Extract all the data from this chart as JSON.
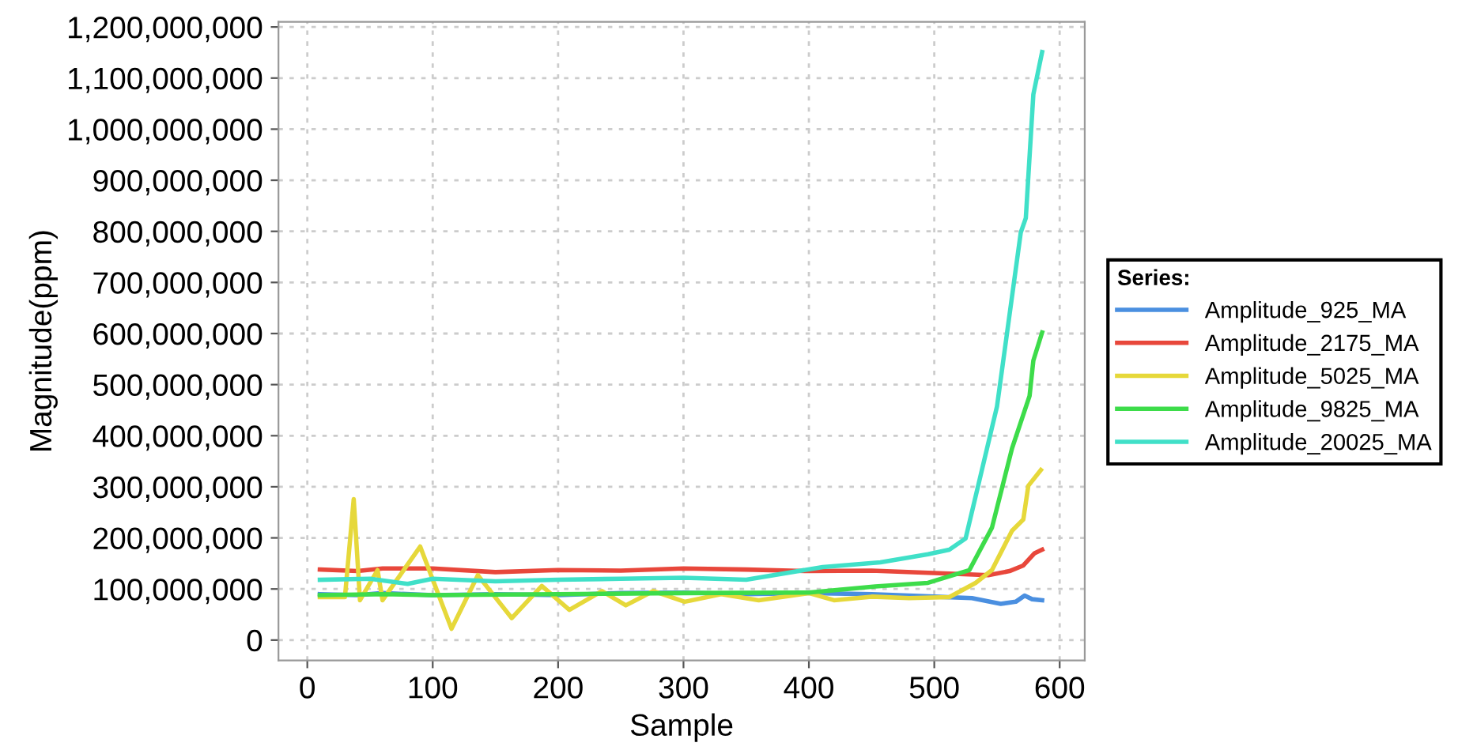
{
  "chart_data": {
    "type": "line",
    "xlabel": "Sample",
    "ylabel": "Magnitude(ppm)",
    "legend_title": "Series:",
    "legend": "right",
    "grid": true,
    "marker": "none",
    "line_style": "solid",
    "xlim": [
      -23,
      620
    ],
    "xticks": [
      0,
      100,
      200,
      300,
      400,
      500,
      600
    ],
    "ylim": [
      -40000000,
      1210000000
    ],
    "yticks": [
      {
        "value": 0,
        "label": "0"
      },
      {
        "value": 100000000,
        "label": "100,000,000"
      },
      {
        "value": 200000000,
        "label": "200,000,000"
      },
      {
        "value": 300000000,
        "label": "300,000,000"
      },
      {
        "value": 400000000,
        "label": "400,000,000"
      },
      {
        "value": 500000000,
        "label": "500,000,000"
      },
      {
        "value": 600000000,
        "label": "600,000,000"
      },
      {
        "value": 700000000,
        "label": "700,000,000"
      },
      {
        "value": 800000000,
        "label": "800,000,000"
      },
      {
        "value": 900000000,
        "label": "900,000,000"
      },
      {
        "value": 1000000000,
        "label": "1,000,000,000"
      },
      {
        "value": 1100000000,
        "label": "1,100,000,000"
      },
      {
        "value": 1200000000,
        "label": "1,200,000,000"
      }
    ],
    "series": [
      {
        "name": "Amplitude_925_MA",
        "color": "#4a8fe0",
        "x": [
          10,
          40,
          60,
          100,
          150,
          200,
          250,
          300,
          350,
          400,
          450,
          500,
          530,
          553,
          565,
          572,
          578,
          586
        ],
        "values": [
          90000000,
          88000000,
          92000000,
          88000000,
          90000000,
          88000000,
          92000000,
          93000000,
          90000000,
          92000000,
          90000000,
          85000000,
          82000000,
          71000000,
          75000000,
          87000000,
          80000000,
          78000000
        ]
      },
      {
        "name": "Amplitude_2175_MA",
        "color": "#e8473b",
        "x": [
          10,
          40,
          60,
          100,
          150,
          200,
          250,
          300,
          350,
          400,
          450,
          512,
          543,
          560,
          571,
          580,
          586
        ],
        "values": [
          138000000,
          135000000,
          140000000,
          140000000,
          133000000,
          137000000,
          136000000,
          140000000,
          138000000,
          135000000,
          136000000,
          130000000,
          127000000,
          135000000,
          146000000,
          170000000,
          177000000
        ]
      },
      {
        "name": "Amplitude_5025_MA",
        "color": "#e6d83a",
        "x": [
          10,
          30,
          37,
          42,
          56,
          60,
          90,
          115,
          136,
          163,
          187,
          209,
          235,
          254,
          276,
          301,
          330,
          360,
          380,
          400,
          420,
          450,
          480,
          512,
          533,
          546,
          562,
          571,
          575,
          585
        ],
        "values": [
          84000000,
          84000000,
          276000000,
          78000000,
          137000000,
          78000000,
          183000000,
          22000000,
          127000000,
          43000000,
          106000000,
          59000000,
          96000000,
          68000000,
          96000000,
          75000000,
          90000000,
          78000000,
          85000000,
          92000000,
          78000000,
          85000000,
          82000000,
          84000000,
          112000000,
          137000000,
          214000000,
          236000000,
          302000000,
          333000000
        ]
      },
      {
        "name": "Amplitude_9825_MA",
        "color": "#3ddc4a",
        "x": [
          10,
          60,
          100,
          200,
          300,
          400,
          453,
          495,
          528,
          546,
          562,
          576,
          579,
          586
        ],
        "values": [
          88000000,
          90000000,
          88000000,
          90000000,
          92000000,
          93000000,
          105000000,
          112000000,
          137000000,
          220000000,
          375000000,
          478000000,
          547000000,
          602000000
        ]
      },
      {
        "name": "Amplitude_20025_MA",
        "color": "#40e0c8",
        "x": [
          10,
          50,
          80,
          100,
          150,
          200,
          250,
          300,
          350,
          411,
          457,
          495,
          512,
          525,
          537,
          550,
          569,
          573,
          579,
          586
        ],
        "values": [
          118000000,
          120000000,
          110000000,
          120000000,
          115000000,
          118000000,
          120000000,
          122000000,
          118000000,
          143000000,
          152000000,
          168000000,
          177000000,
          199000000,
          323000000,
          457000000,
          798000000,
          826000000,
          1068000000,
          1151000000
        ]
      }
    ]
  }
}
